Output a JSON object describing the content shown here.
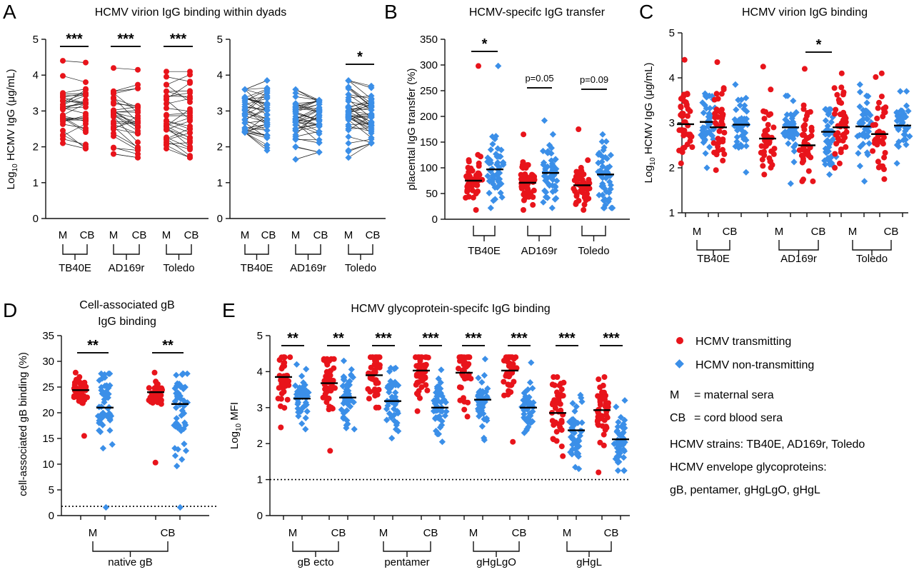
{
  "colors": {
    "transmitting": "#e8141b",
    "non_transmitting": "#3b8fe8",
    "axis": "#111111"
  },
  "panels": {
    "A": {
      "letter": "A",
      "title": "HCMV virion IgG binding within dyads",
      "ylabel_log": "Log",
      "ylabel_sub": "10",
      "ylabel_rest": " HCMV IgG (μg/mL)",
      "ylim": [
        0,
        5
      ],
      "yticks": [
        "0",
        "1",
        "2",
        "3",
        "4",
        "5"
      ],
      "sub_labels": [
        "M",
        "CB"
      ],
      "groups": [
        "TB40E",
        "AD169r",
        "Toledo"
      ],
      "sig_left": [
        "***",
        "***",
        "***"
      ],
      "sig_right": [
        "",
        "",
        "*"
      ]
    },
    "B": {
      "letter": "B",
      "title": "HCMV-specifc IgG transfer",
      "ylabel": "placental IgG transfer (%)",
      "ylim": [
        0,
        350
      ],
      "yticks": [
        "0",
        "50",
        "100",
        "150",
        "200",
        "250",
        "300",
        "350"
      ],
      "groups": [
        "TB40E",
        "AD169r",
        "Toledo"
      ],
      "sig": [
        "*",
        "p=0.05",
        "p=0.09"
      ],
      "medians_M": [
        75,
        71,
        66
      ],
      "medians_CB": [
        97,
        90,
        87
      ]
    },
    "C": {
      "letter": "C",
      "title": "HCMV virion IgG binding",
      "ylabel_log": "Log",
      "ylabel_sub": "10",
      "ylabel_rest": " HCMV IgG (μg/mL)",
      "ylim": [
        1,
        5
      ],
      "yticks": [
        "1",
        "2",
        "3",
        "4",
        "5"
      ],
      "sub_labels": [
        "M",
        "CB"
      ],
      "groups": [
        "TB40E",
        "AD169r",
        "Toledo"
      ],
      "sig": [
        "",
        "*",
        ""
      ],
      "medians": [
        [
          2.97,
          3.02,
          2.9,
          2.96
        ],
        [
          2.65,
          2.9,
          2.5,
          2.8
        ],
        [
          2.9,
          2.92,
          2.75,
          2.94
        ]
      ]
    },
    "D": {
      "letter": "D",
      "title_line1": "Cell-associated gB",
      "title_line2": "IgG binding",
      "ylabel": "cell-associated gB binding (%)",
      "ylim": [
        0,
        35
      ],
      "yticks": [
        "0",
        "5",
        "10",
        "15",
        "20",
        "25",
        "30",
        "35"
      ],
      "sub_labels": [
        "M",
        "CB"
      ],
      "group": "native gB",
      "sig": [
        "**",
        "**"
      ],
      "medians": [
        [
          24.4,
          21.0
        ],
        [
          24.0,
          21.7
        ]
      ],
      "cutoff": 1.8
    },
    "E": {
      "letter": "E",
      "title": "HCMV glycoprotein-specifc IgG binding",
      "ylabel_log": "Log",
      "ylabel_sub": "10",
      "ylabel_rest": " MFI",
      "ylim": [
        0,
        5
      ],
      "yticks": [
        "0",
        "1",
        "2",
        "3",
        "4",
        "5"
      ],
      "sub_labels": [
        "M",
        "CB"
      ],
      "groups": [
        "gB ecto",
        "pentamer",
        "gHgLgO",
        "gHgL"
      ],
      "sig": [
        "**",
        "**",
        "***",
        "***",
        "***",
        "***",
        "***",
        "***"
      ],
      "medians": [
        [
          3.85,
          3.25
        ],
        [
          3.68,
          3.28
        ],
        [
          3.9,
          3.18
        ],
        [
          4.03,
          3.0
        ],
        [
          3.97,
          3.22
        ],
        [
          4.03,
          3.0
        ],
        [
          2.85,
          2.37
        ],
        [
          2.93,
          2.12
        ]
      ],
      "cutoff": 1.0
    }
  },
  "legend": {
    "transmitting": "HCMV transmitting",
    "non_transmitting": "HCMV non-transmitting",
    "m_key": "M",
    "m_def": "=  maternal sera",
    "cb_key": "CB",
    "cb_def": "=  cord blood sera",
    "strains": "HCMV strains: TB40E, AD169r, Toledo",
    "env_line1": "HCMV envelope glycoproteins:",
    "env_line2": "gB, pentamer, gHgLgO, gHgL"
  },
  "chart_data": [
    {
      "type": "scatter",
      "panel": "A",
      "title": "HCMV virion IgG binding within dyads",
      "ylabel": "Log10 HCMV IgG (μg/mL)",
      "ylim": [
        0,
        5
      ],
      "series": [
        {
          "name": "HCMV transmitting",
          "categories": [
            "TB40E M",
            "TB40E CB",
            "AD169r M",
            "AD169r CB",
            "Toledo M",
            "Toledo CB"
          ],
          "ranges": [
            [
              2.1,
              4.4
            ],
            [
              1.95,
              4.35
            ],
            [
              1.8,
              4.2
            ],
            [
              1.7,
              4.15
            ],
            [
              1.95,
              4.1
            ],
            [
              1.7,
              4.1
            ]
          ]
        },
        {
          "name": "HCMV non-transmitting",
          "categories": [
            "TB40E M",
            "TB40E CB",
            "AD169r M",
            "AD169r CB",
            "Toledo M",
            "Toledo CB"
          ],
          "ranges": [
            [
              2.4,
              3.6
            ],
            [
              1.9,
              3.85
            ],
            [
              1.65,
              3.6
            ],
            [
              1.85,
              3.3
            ],
            [
              1.7,
              3.85
            ],
            [
              2.1,
              3.7
            ]
          ]
        }
      ]
    },
    {
      "type": "scatter",
      "panel": "B",
      "title": "HCMV-specifc IgG transfer",
      "ylabel": "placental IgG transfer (%)",
      "ylim": [
        0,
        350
      ],
      "categories": [
        "TB40E",
        "AD169r",
        "Toledo"
      ],
      "series": [
        {
          "name": "HCMV transmitting",
          "medians": [
            75,
            71,
            66
          ],
          "max": [
            298,
            165,
            175
          ]
        },
        {
          "name": "HCMV non-transmitting",
          "medians": [
            97,
            90,
            87
          ],
          "max": [
            298,
            192,
            165
          ]
        }
      ]
    },
    {
      "type": "scatter",
      "panel": "C",
      "title": "HCMV virion IgG binding",
      "ylabel": "Log10 HCMV IgG (μg/mL)",
      "ylim": [
        1,
        5
      ],
      "categories": [
        "TB40E",
        "AD169r",
        "Toledo"
      ],
      "series": [
        {
          "name": "HCMV transmitting",
          "medians_M": [
            2.97,
            2.65,
            2.9
          ],
          "medians_CB": [
            2.9,
            2.5,
            2.75
          ]
        },
        {
          "name": "HCMV non-transmitting",
          "medians_M": [
            3.02,
            2.9,
            2.92
          ],
          "medians_CB": [
            2.96,
            2.8,
            2.94
          ]
        }
      ]
    },
    {
      "type": "scatter",
      "panel": "D",
      "title": "Cell-associated gB IgG binding",
      "ylabel": "cell-associated gB binding (%)",
      "ylim": [
        0,
        35
      ],
      "categories": [
        "M",
        "CB"
      ],
      "series": [
        {
          "name": "HCMV transmitting",
          "medians": [
            24.4,
            24.0
          ]
        },
        {
          "name": "HCMV non-transmitting",
          "medians": [
            21.0,
            21.7
          ]
        }
      ]
    },
    {
      "type": "scatter",
      "panel": "E",
      "title": "HCMV glycoprotein-specifc IgG binding",
      "ylabel": "Log10 MFI",
      "ylim": [
        0,
        5
      ],
      "categories": [
        "gB ecto M",
        "gB ecto CB",
        "pentamer M",
        "pentamer CB",
        "gHgLgO M",
        "gHgLgO CB",
        "gHgL M",
        "gHgL CB"
      ],
      "series": [
        {
          "name": "HCMV transmitting",
          "medians": [
            3.85,
            3.68,
            3.9,
            4.03,
            3.97,
            4.03,
            2.85,
            2.93
          ]
        },
        {
          "name": "HCMV non-transmitting",
          "medians": [
            3.25,
            3.28,
            3.18,
            3.0,
            3.22,
            3.0,
            2.37,
            2.12
          ]
        }
      ]
    }
  ]
}
